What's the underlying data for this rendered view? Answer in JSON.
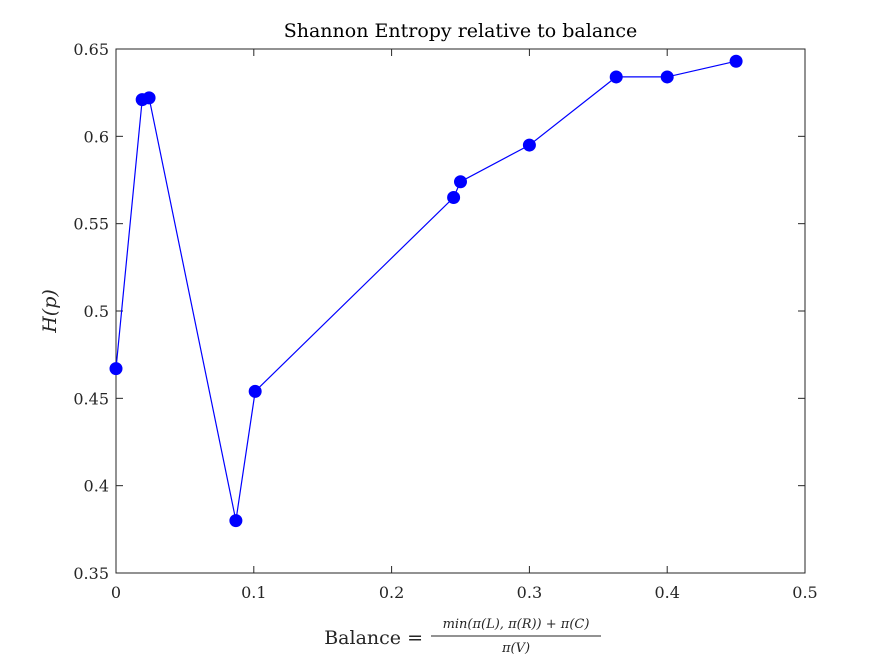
{
  "chart_data": {
    "type": "line",
    "title": "Shannon Entropy relative to balance",
    "xlabel": {
      "prefix": "Balance = ",
      "numerator": "min(π(L), π(R)) + π(C)",
      "denominator": "π(V)"
    },
    "ylabel": "H(p)",
    "xlim": [
      0,
      0.5
    ],
    "ylim": [
      0.35,
      0.65
    ],
    "xticks": [
      0,
      0.1,
      0.2,
      0.3,
      0.4,
      0.5
    ],
    "xtick_labels": [
      "0",
      "0.1",
      "0.2",
      "0.3",
      "0.4",
      "0.5"
    ],
    "yticks": [
      0.35,
      0.4,
      0.45,
      0.5,
      0.55,
      0.6,
      0.65
    ],
    "ytick_labels": [
      "0.35",
      "0.4",
      "0.45",
      "0.5",
      "0.55",
      "0.6",
      "0.65"
    ],
    "grid": false,
    "color": "#0000ff",
    "marker": "circle",
    "series": [
      {
        "x": [
          0.0,
          0.019,
          0.024,
          0.087,
          0.101,
          0.245,
          0.25,
          0.3,
          0.363,
          0.4,
          0.45
        ],
        "y": [
          0.467,
          0.621,
          0.622,
          0.38,
          0.454,
          0.565,
          0.574,
          0.595,
          0.634,
          0.634,
          0.643
        ]
      }
    ]
  }
}
